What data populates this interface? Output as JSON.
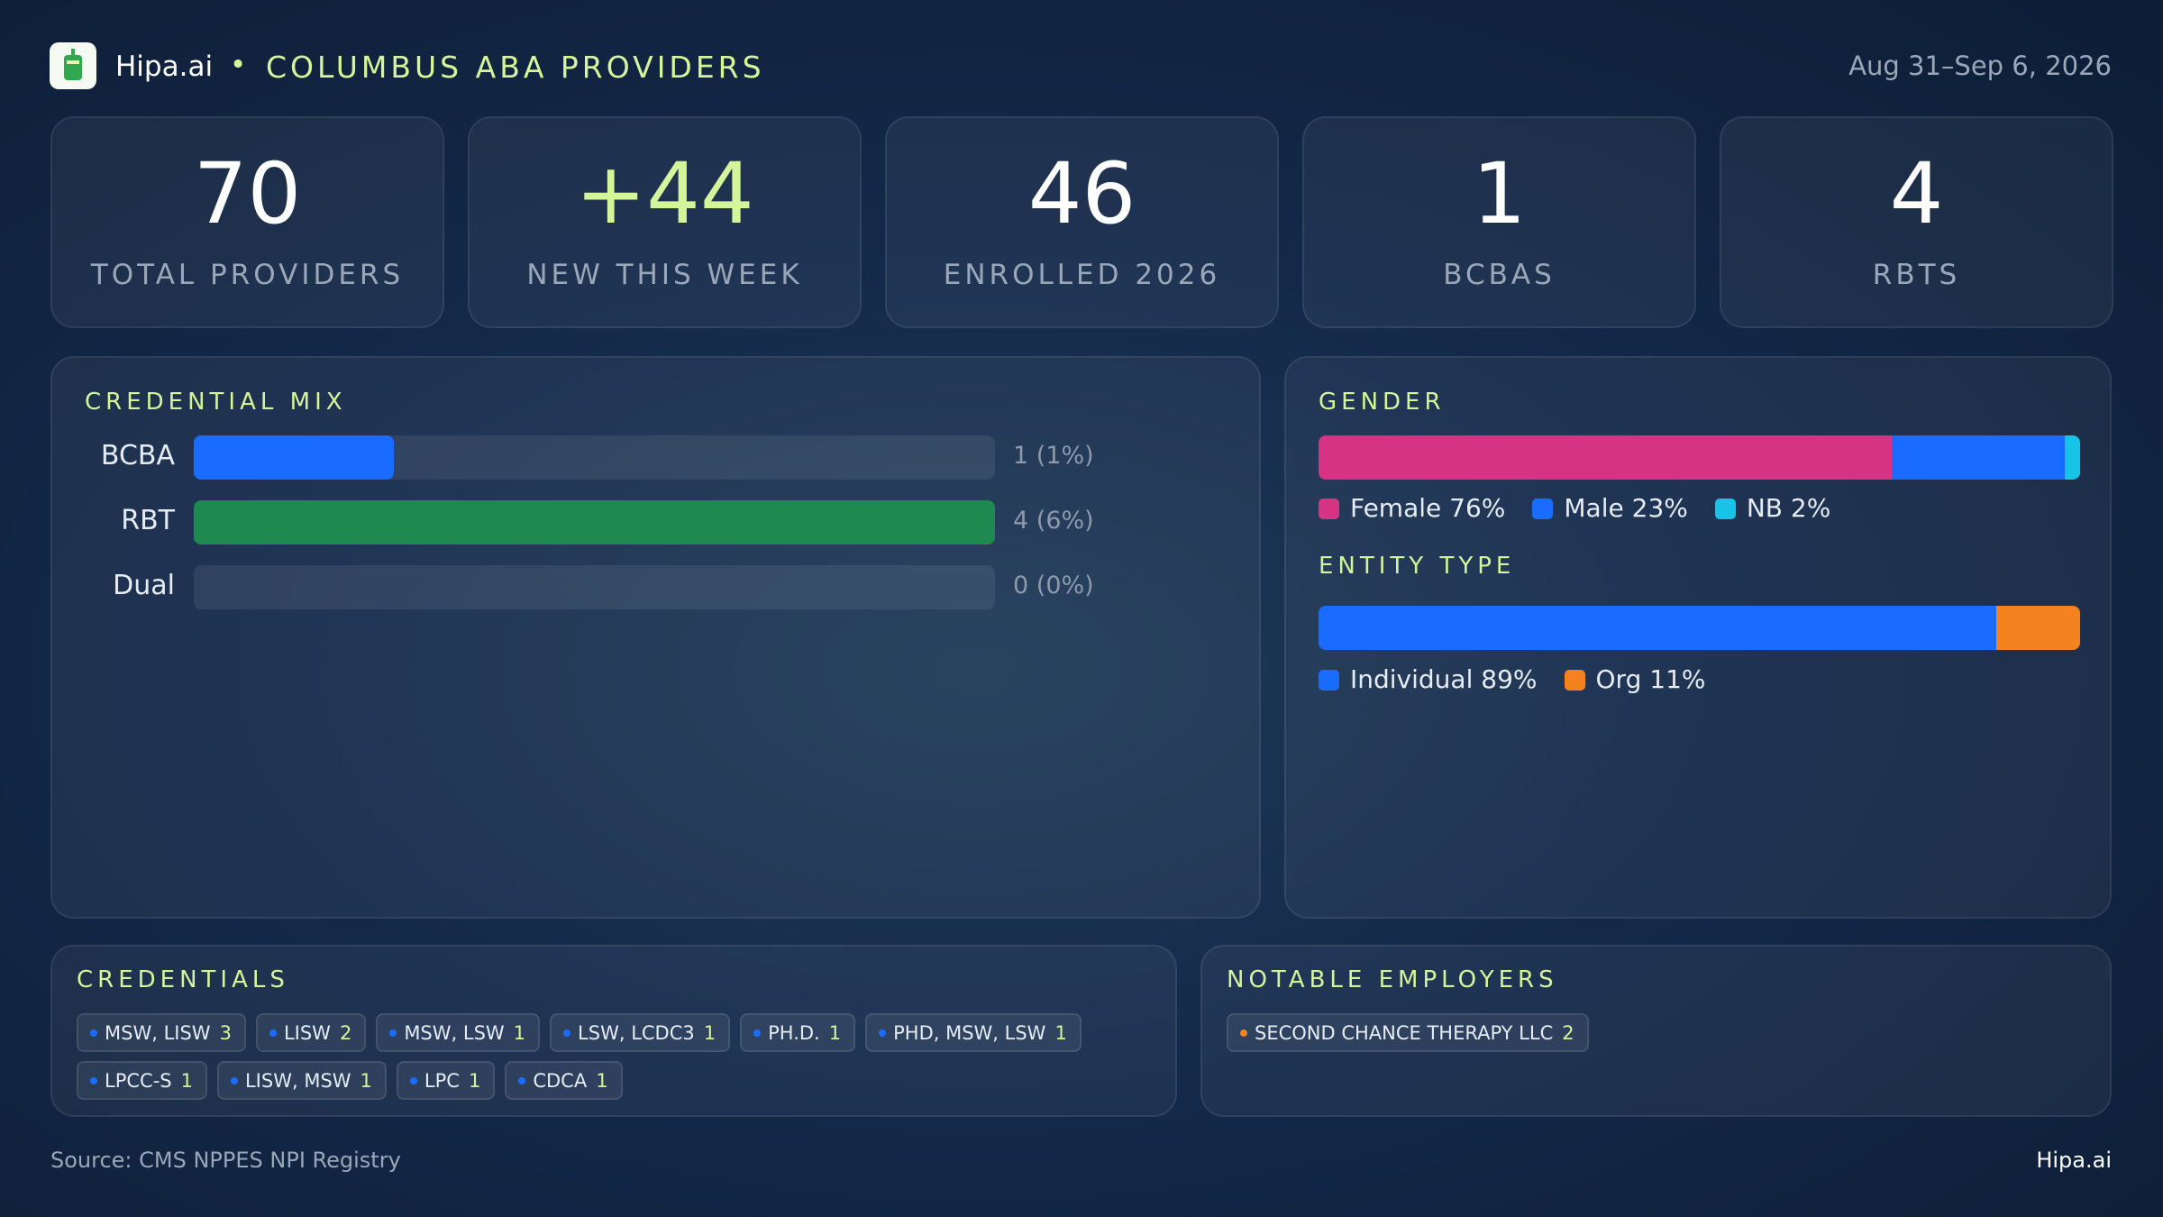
{
  "header": {
    "brand": "Hipa.ai",
    "separator": "•",
    "title": "COLUMBUS ABA PROVIDERS",
    "date_range": "Aug 31–Sep 6, 2026"
  },
  "kpis": [
    {
      "value": "70",
      "label": "TOTAL PROVIDERS",
      "color": "#ffffff"
    },
    {
      "value": "+44",
      "label": "NEW THIS WEEK",
      "color": "#d4f59a"
    },
    {
      "value": "46",
      "label": "ENROLLED 2026",
      "color": "#ffffff"
    },
    {
      "value": "1",
      "label": "BCBAS",
      "color": "#ffffff"
    },
    {
      "value": "4",
      "label": "RBTS",
      "color": "#ffffff"
    }
  ],
  "credential_mix": {
    "title": "CREDENTIAL MIX",
    "rows": [
      {
        "label": "BCBA",
        "count": 1,
        "percent_label": "(1%)",
        "color": "#1a6cff"
      },
      {
        "label": "RBT",
        "count": 4,
        "percent_label": "(6%)",
        "color": "#1e8a50"
      },
      {
        "label": "Dual",
        "count": 0,
        "percent_label": "(0%)",
        "color": "#8b5cf6"
      }
    ]
  },
  "gender": {
    "title": "GENDER",
    "segments": [
      {
        "name": "Female",
        "value": 76,
        "value_label": "76%",
        "color": "#d63384"
      },
      {
        "name": "Male",
        "value": 23,
        "value_label": "23%",
        "color": "#1a6cff"
      },
      {
        "name": "NB",
        "value": 2,
        "value_label": "2%",
        "color": "#17c3e6"
      }
    ]
  },
  "entity_type": {
    "title": "ENTITY TYPE",
    "segments": [
      {
        "name": "Individual",
        "value": 89,
        "value_label": "89%",
        "color": "#1a6cff"
      },
      {
        "name": "Org",
        "value": 11,
        "value_label": "11%",
        "color": "#f58220"
      }
    ]
  },
  "credentials": {
    "title": "CREDENTIALS",
    "items": [
      {
        "name": "MSW, LISW",
        "count": 3
      },
      {
        "name": "LISW",
        "count": 2
      },
      {
        "name": "MSW, LSW",
        "count": 1
      },
      {
        "name": "LSW, LCDC3",
        "count": 1
      },
      {
        "name": "PH.D.",
        "count": 1
      },
      {
        "name": "PHD, MSW, LSW",
        "count": 1
      },
      {
        "name": "LPCC-S",
        "count": 1
      },
      {
        "name": "LISW, MSW",
        "count": 1
      },
      {
        "name": "LPC",
        "count": 1
      },
      {
        "name": "CDCA",
        "count": 1
      }
    ]
  },
  "employers": {
    "title": "NOTABLE EMPLOYERS",
    "items": [
      {
        "name": "SECOND CHANCE THERAPY LLC",
        "count": 2
      }
    ]
  },
  "footer": {
    "source": "Source: CMS NPPES NPI Registry",
    "brand": "Hipa.ai"
  }
}
